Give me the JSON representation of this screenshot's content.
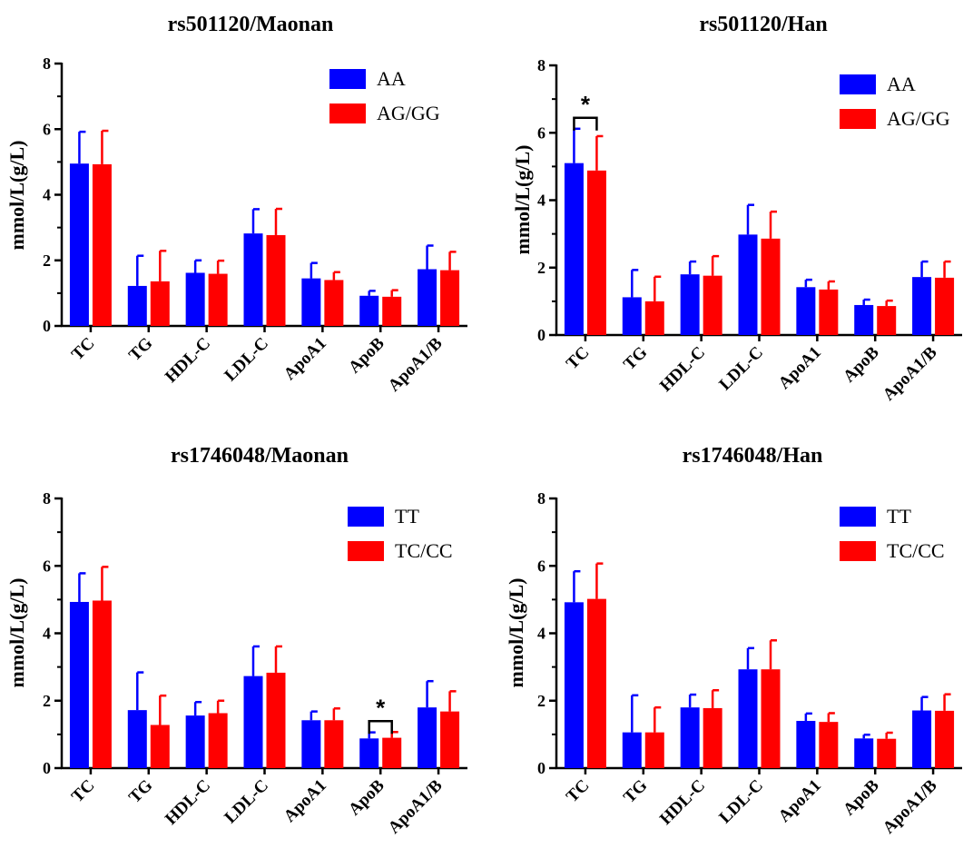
{
  "colors": {
    "series_1": "#0000ff",
    "series_2": "#ff0000",
    "axis": "#000000"
  },
  "chart_data": [
    {
      "type": "bar",
      "title": "rs501120/Maonan",
      "ylabel": "mmol/L(g/L)",
      "xlabel": "",
      "ylim": [
        0,
        8
      ],
      "yticks": [
        0,
        2,
        4,
        6,
        8
      ],
      "legend_position": "top-right",
      "categories": [
        "TC",
        "TG",
        "HDL-C",
        "LDL-C",
        "ApoA1",
        "ApoB",
        "ApoA1/B"
      ],
      "series": [
        {
          "name": "AA",
          "color": "#0000ff",
          "values": [
            4.95,
            1.22,
            1.62,
            2.82,
            1.45,
            0.92,
            1.73
          ],
          "errors": [
            0.97,
            0.92,
            0.38,
            0.74,
            0.47,
            0.15,
            0.72
          ]
        },
        {
          "name": "AG/GG",
          "color": "#ff0000",
          "values": [
            4.93,
            1.36,
            1.59,
            2.77,
            1.4,
            0.89,
            1.7
          ],
          "errors": [
            1.02,
            0.93,
            0.4,
            0.8,
            0.24,
            0.2,
            0.56
          ]
        }
      ],
      "significance": []
    },
    {
      "type": "bar",
      "title": "rs501120/Han",
      "ylabel": "mmol/L(g/L)",
      "xlabel": "",
      "ylim": [
        0,
        8
      ],
      "yticks": [
        0,
        2,
        4,
        6,
        8
      ],
      "legend_position": "top-right",
      "categories": [
        "TC",
        "TG",
        "HDL-C",
        "LDL-C",
        "ApoA1",
        "ApoB",
        "ApoA1/B"
      ],
      "series": [
        {
          "name": "AA",
          "color": "#0000ff",
          "values": [
            5.1,
            1.12,
            1.8,
            2.98,
            1.42,
            0.89,
            1.72
          ],
          "errors": [
            1.02,
            0.81,
            0.38,
            0.88,
            0.22,
            0.16,
            0.46
          ]
        },
        {
          "name": "AG/GG",
          "color": "#ff0000",
          "values": [
            4.88,
            1.0,
            1.76,
            2.86,
            1.35,
            0.86,
            1.7
          ],
          "errors": [
            1.02,
            0.73,
            0.58,
            0.8,
            0.24,
            0.16,
            0.48
          ]
        }
      ],
      "significance": [
        {
          "category": "TC",
          "label": "*"
        }
      ]
    },
    {
      "type": "bar",
      "title": "rs1746048/Maonan",
      "ylabel": "mmol/L(g/L)",
      "xlabel": "",
      "ylim": [
        0,
        8
      ],
      "yticks": [
        0,
        2,
        4,
        6,
        8
      ],
      "legend_position": "top-right",
      "categories": [
        "TC",
        "TG",
        "HDL-C",
        "LDL-C",
        "ApoA1",
        "ApoB",
        "ApoA1/B"
      ],
      "series": [
        {
          "name": "TT",
          "color": "#0000ff",
          "values": [
            4.93,
            1.72,
            1.56,
            2.73,
            1.42,
            0.88,
            1.8
          ],
          "errors": [
            0.85,
            1.12,
            0.4,
            0.88,
            0.26,
            0.18,
            0.78
          ]
        },
        {
          "name": "TC/CC",
          "color": "#ff0000",
          "values": [
            4.97,
            1.28,
            1.63,
            2.83,
            1.42,
            0.9,
            1.68
          ],
          "errors": [
            1.0,
            0.87,
            0.37,
            0.78,
            0.35,
            0.17,
            0.6
          ]
        }
      ],
      "significance": [
        {
          "category": "ApoB",
          "label": "*"
        }
      ]
    },
    {
      "type": "bar",
      "title": "rs1746048/Han",
      "ylabel": "mmol/L(g/L)",
      "xlabel": "",
      "ylim": [
        0,
        8
      ],
      "yticks": [
        0,
        2,
        4,
        6,
        8
      ],
      "legend_position": "top-right",
      "categories": [
        "TC",
        "TG",
        "HDL-C",
        "LDL-C",
        "ApoA1",
        "ApoB",
        "ApoA1/B"
      ],
      "series": [
        {
          "name": "TT",
          "color": "#0000ff",
          "values": [
            4.92,
            1.06,
            1.8,
            2.93,
            1.4,
            0.88,
            1.71
          ],
          "errors": [
            0.92,
            1.1,
            0.38,
            0.63,
            0.22,
            0.11,
            0.4
          ]
        },
        {
          "name": "TC/CC",
          "color": "#ff0000",
          "values": [
            5.02,
            1.06,
            1.78,
            2.93,
            1.37,
            0.87,
            1.7
          ],
          "errors": [
            1.05,
            0.74,
            0.53,
            0.86,
            0.26,
            0.18,
            0.49
          ]
        }
      ],
      "significance": []
    }
  ]
}
